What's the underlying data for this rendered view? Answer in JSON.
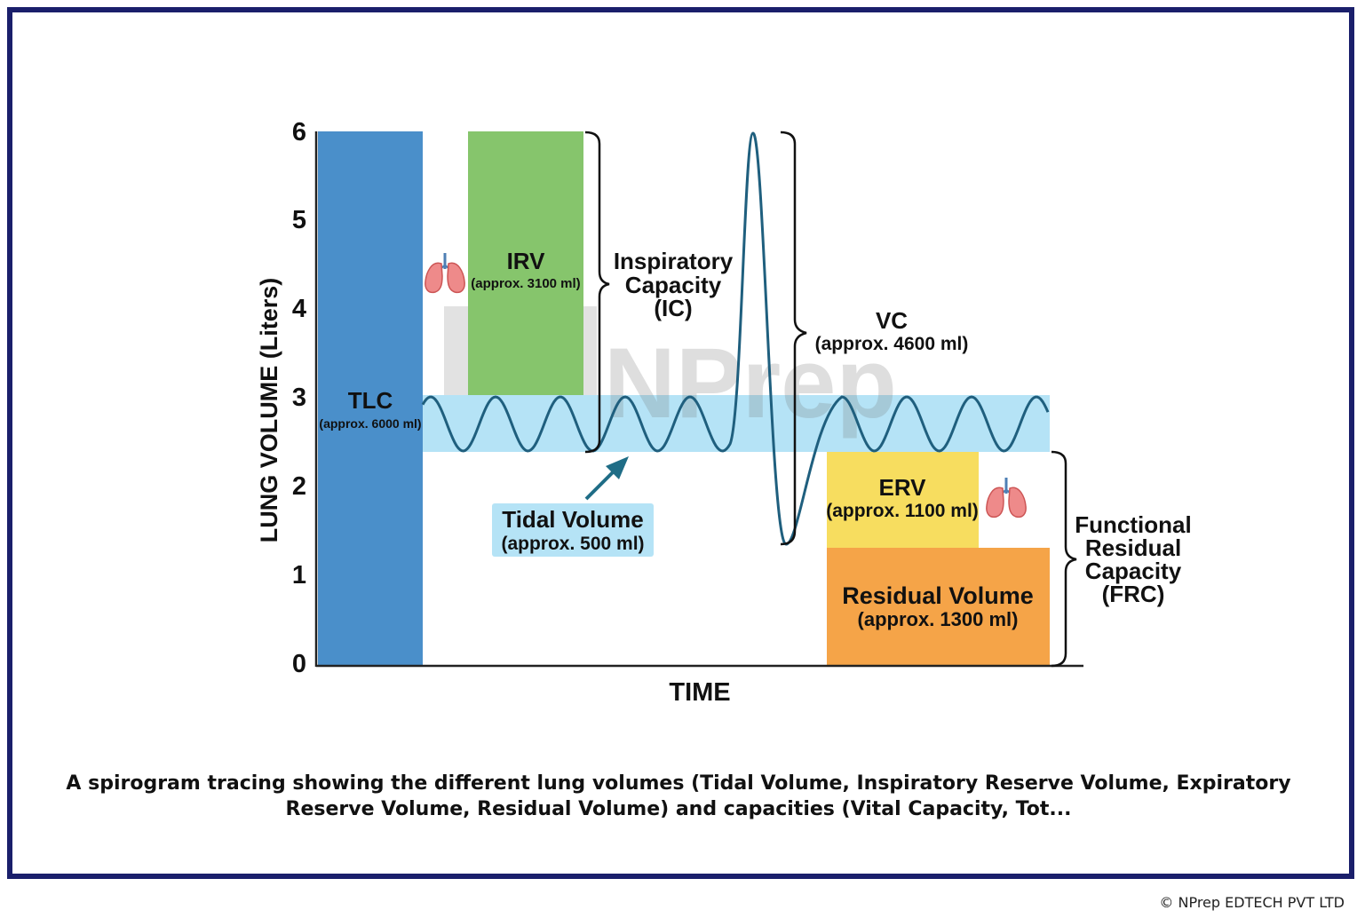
{
  "diagram": {
    "y_axis_label": "LUNG VOLUME (Liters)",
    "x_axis_label": "TIME",
    "y_ticks": [
      "0",
      "1",
      "2",
      "3",
      "4",
      "5",
      "6"
    ],
    "tlc": {
      "label": "TLC",
      "sub": "(approx. 6000 ml)"
    },
    "irv": {
      "label": "IRV",
      "sub": "(approx. 3100 ml)"
    },
    "ic": {
      "line1": "Inspiratory",
      "line2": "Capacity",
      "line3": "(IC)"
    },
    "vc": {
      "label": "VC",
      "sub": "(approx. 4600 ml)"
    },
    "tidal": {
      "label": "Tidal Volume",
      "sub": "(approx. 500 ml)"
    },
    "erv": {
      "label": "ERV",
      "sub": "(approx. 1100 ml)"
    },
    "rv": {
      "label": "Residual Volume",
      "sub": "(approx. 1300 ml)"
    },
    "frc": {
      "line1": "Functional",
      "line2": "Residual",
      "line3": "Capacity",
      "line4": "(FRC)"
    },
    "watermark": "NPrep",
    "colors": {
      "tlc": "#4a8fca",
      "irv": "#86c56c",
      "tidal_band": "#b5e3f6",
      "erv": "#f7dd5f",
      "rv": "#f5a448",
      "trace": "#1f5f7e",
      "frame": "#1a1f6b"
    }
  },
  "caption": "A spirogram tracing showing the different lung volumes (Tidal Volume, Inspiratory Reserve Volume, Expiratory Reserve Volume, Residual Volume) and capacities (Vital Capacity, Tot...",
  "copyright": "© NPrep EDTECH PVT LTD"
}
